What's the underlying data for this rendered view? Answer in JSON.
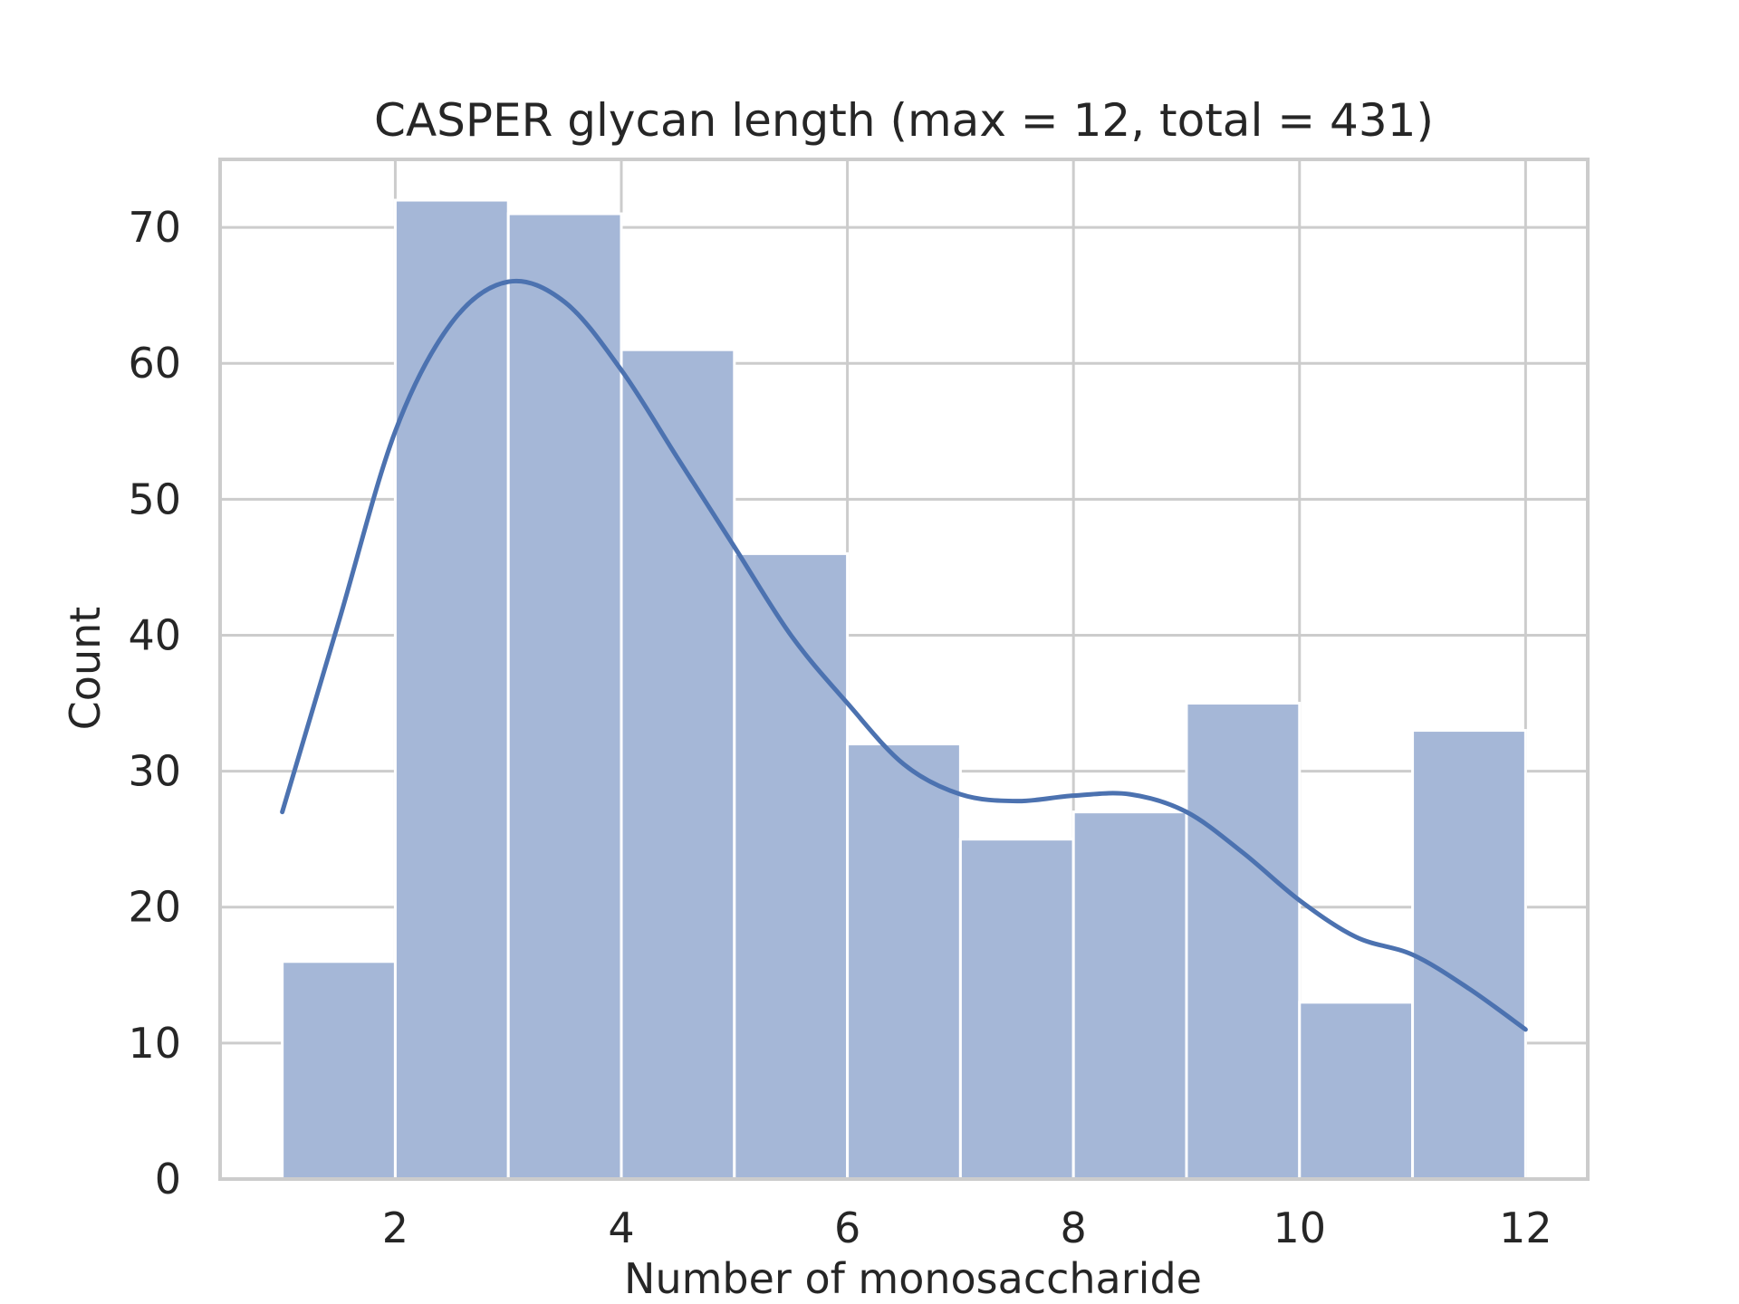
{
  "chart_data": {
    "type": "bar",
    "title": "CASPER glycan length (max = 12, total = 431)",
    "xlabel": "Number of monosaccharide",
    "ylabel": "Count",
    "xlim": [
      0.45,
      12.55
    ],
    "ylim": [
      0,
      75
    ],
    "xticks": [
      2,
      4,
      6,
      8,
      10,
      12
    ],
    "yticks": [
      0,
      10,
      20,
      30,
      40,
      50,
      60,
      70
    ],
    "bins": [
      {
        "start": 1.0,
        "end": 2.0,
        "value": 16
      },
      {
        "start": 2.0,
        "end": 3.0,
        "value": 72
      },
      {
        "start": 3.0,
        "end": 4.0,
        "value": 71
      },
      {
        "start": 4.0,
        "end": 5.0,
        "value": 61
      },
      {
        "start": 5.0,
        "end": 6.0,
        "value": 46
      },
      {
        "start": 6.0,
        "end": 7.0,
        "value": 32
      },
      {
        "start": 7.0,
        "end": 8.0,
        "value": 25
      },
      {
        "start": 8.0,
        "end": 9.0,
        "value": 27
      },
      {
        "start": 9.0,
        "end": 10.0,
        "value": 35
      },
      {
        "start": 10.0,
        "end": 11.0,
        "value": 13
      },
      {
        "start": 11.0,
        "end": 12.0,
        "value": 33
      }
    ],
    "kde": [
      [
        1.0,
        27
      ],
      [
        1.5,
        41
      ],
      [
        2.0,
        55
      ],
      [
        2.5,
        63
      ],
      [
        3.0,
        66
      ],
      [
        3.5,
        64.5
      ],
      [
        4.0,
        59.5
      ],
      [
        4.5,
        53
      ],
      [
        5.0,
        46.5
      ],
      [
        5.5,
        40
      ],
      [
        6.0,
        35
      ],
      [
        6.5,
        30.5
      ],
      [
        7.0,
        28.3
      ],
      [
        7.5,
        27.8
      ],
      [
        8.0,
        28.2
      ],
      [
        8.5,
        28.3
      ],
      [
        9.0,
        27
      ],
      [
        9.5,
        24
      ],
      [
        10.0,
        20.5
      ],
      [
        10.5,
        17.8
      ],
      [
        11.0,
        16.5
      ],
      [
        11.5,
        14
      ],
      [
        12.0,
        11
      ]
    ],
    "grid": true,
    "colors": {
      "bar_fill": "#a5b7d7",
      "bar_edge": "#ffffff",
      "kde_line": "#4c72b0",
      "grid": "#cccccc",
      "axis_frame": "#cccccc",
      "text": "#262626"
    }
  }
}
